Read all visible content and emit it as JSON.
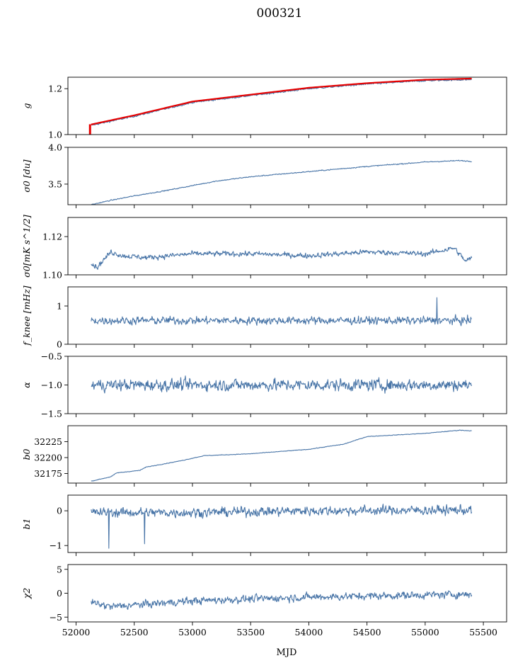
{
  "title": "000321",
  "colors": {
    "series": "#4a76a8",
    "fit": "#e60000"
  },
  "chart_data": [
    {
      "type": "line",
      "name": "g",
      "ylabel": "g",
      "ylim": [
        1.0,
        1.25
      ],
      "yticks": [
        1.0,
        1.2
      ],
      "yticklabels": [
        "1.0",
        "1.2"
      ],
      "trend": [
        [
          52130,
          1.04
        ],
        [
          52500,
          1.08
        ],
        [
          53000,
          1.14
        ],
        [
          53500,
          1.17
        ],
        [
          54000,
          1.2
        ],
        [
          54500,
          1.22
        ],
        [
          55000,
          1.235
        ],
        [
          55400,
          1.24
        ]
      ],
      "noise": 0.003,
      "fit_overlay": true,
      "fit_offset": 0.004,
      "fit_drop": [
        52120,
        1.0,
        1.045
      ]
    },
    {
      "type": "line",
      "name": "sigma0-du",
      "ylabel": "σ0 [du]",
      "ylim": [
        3.22,
        4.0
      ],
      "yticks": [
        3.5,
        4.0
      ],
      "yticklabels": [
        "3.5",
        "4.0"
      ],
      "trend": [
        [
          52130,
          3.22
        ],
        [
          52300,
          3.28
        ],
        [
          52500,
          3.34
        ],
        [
          52800,
          3.42
        ],
        [
          53200,
          3.54
        ],
        [
          53500,
          3.6
        ],
        [
          54000,
          3.67
        ],
        [
          54500,
          3.74
        ],
        [
          55000,
          3.8
        ],
        [
          55300,
          3.82
        ],
        [
          55400,
          3.81
        ]
      ],
      "noise": 0.006
    },
    {
      "type": "line",
      "name": "sigma0-mK",
      "ylabel": "σ0[mK s^1/2]",
      "ylim": [
        1.1,
        1.13
      ],
      "yticks": [
        1.1,
        1.12
      ],
      "yticklabels": [
        "1.10",
        "1.12"
      ],
      "trend": [
        [
          52130,
          1.106
        ],
        [
          52180,
          1.104
        ],
        [
          52300,
          1.112
        ],
        [
          52400,
          1.11
        ],
        [
          52600,
          1.109
        ],
        [
          53000,
          1.111
        ],
        [
          53500,
          1.111
        ],
        [
          54000,
          1.11
        ],
        [
          54500,
          1.112
        ],
        [
          55000,
          1.111
        ],
        [
          55250,
          1.114
        ],
        [
          55350,
          1.107
        ],
        [
          55400,
          1.109
        ]
      ],
      "noise": 0.0012
    },
    {
      "type": "line",
      "name": "fknee",
      "ylabel": "f_knee [mHz]",
      "ylim": [
        0,
        1.5
      ],
      "yticks": [
        0,
        1
      ],
      "yticklabels": [
        "0",
        "1"
      ],
      "trend": [
        [
          52130,
          0.62
        ],
        [
          55400,
          0.62
        ]
      ],
      "noise": 0.09,
      "spike": [
        55100,
        1.22
      ]
    },
    {
      "type": "line",
      "name": "alpha",
      "ylabel": "α",
      "ylim": [
        -1.5,
        -0.5
      ],
      "yticks": [
        -1.5,
        -1.0,
        -0.5
      ],
      "yticklabels": [
        "−1.5",
        "−1.0",
        "−0.5"
      ],
      "trend": [
        [
          52130,
          -1.0
        ],
        [
          55400,
          -1.0
        ]
      ],
      "noise": 0.09
    },
    {
      "type": "line",
      "name": "b0",
      "ylabel": "b0",
      "ylim": [
        32160,
        32250
      ],
      "yticks": [
        32175,
        32200,
        32225
      ],
      "yticklabels": [
        "32175",
        "32200",
        "32225"
      ],
      "trend": [
        [
          52130,
          32163
        ],
        [
          52300,
          32170
        ],
        [
          52350,
          32176
        ],
        [
          52550,
          32180
        ],
        [
          52600,
          32185
        ],
        [
          52900,
          32195
        ],
        [
          53100,
          32203
        ],
        [
          53500,
          32206
        ],
        [
          54000,
          32213
        ],
        [
          54300,
          32221
        ],
        [
          54500,
          32233
        ],
        [
          55000,
          32238
        ],
        [
          55300,
          32243
        ],
        [
          55400,
          32242
        ]
      ],
      "noise": 0.4
    },
    {
      "type": "line",
      "name": "b1",
      "ylabel": "b1",
      "ylim": [
        -1.2,
        0.45
      ],
      "yticks": [
        -1,
        0
      ],
      "yticklabels": [
        "−1",
        "0"
      ],
      "trend": [
        [
          52130,
          -0.05
        ],
        [
          53000,
          -0.05
        ],
        [
          54000,
          0.0
        ],
        [
          55400,
          0.02
        ]
      ],
      "noise": 0.12,
      "dips": [
        [
          52280,
          -1.08
        ],
        [
          52590,
          -0.95
        ]
      ]
    },
    {
      "type": "line",
      "name": "chi2",
      "ylabel": "χ2",
      "ylim": [
        -6,
        6
      ],
      "yticks": [
        -5,
        0,
        5
      ],
      "yticklabels": [
        "−5",
        "0",
        "5"
      ],
      "trend": [
        [
          52130,
          -2.0
        ],
        [
          52300,
          -2.8
        ],
        [
          53000,
          -1.6
        ],
        [
          54000,
          -0.8
        ],
        [
          55400,
          -0.2
        ]
      ],
      "noise": 0.7
    }
  ],
  "x_axis": {
    "label": "MJD",
    "xlim": [
      51930,
      55700
    ],
    "ticks": [
      52000,
      52500,
      53000,
      53500,
      54000,
      54500,
      55000,
      55500
    ],
    "ticklabels": [
      "52000",
      "52500",
      "53000",
      "53500",
      "54000",
      "54500",
      "55000",
      "55500"
    ],
    "data_range": [
      52130,
      55400
    ]
  }
}
